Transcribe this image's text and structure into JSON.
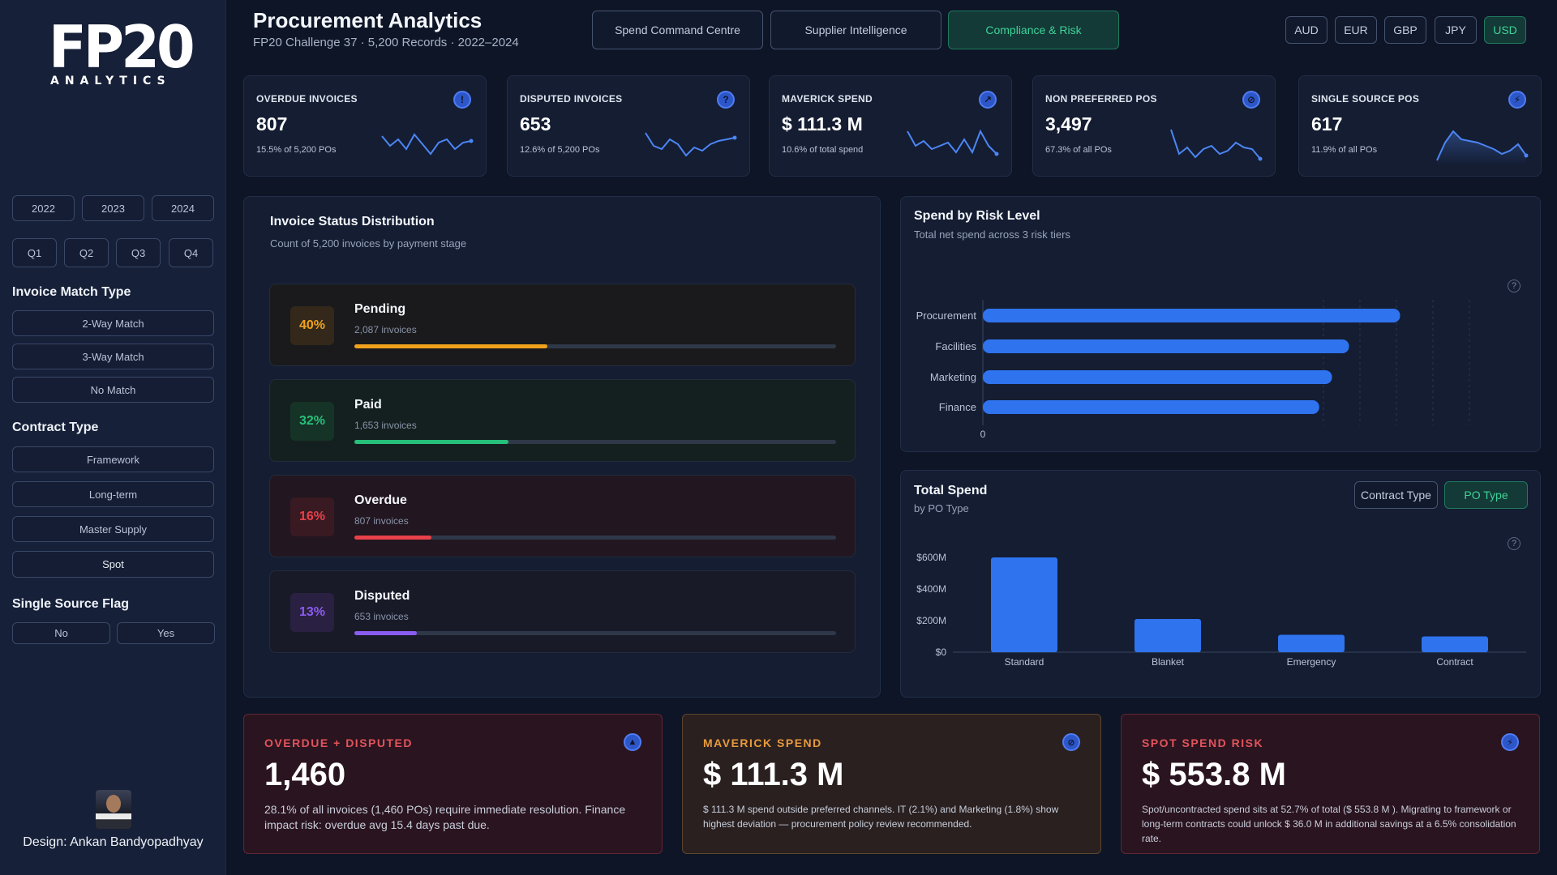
{
  "logo": {
    "main": "FP20",
    "sub": "ANALYTICS"
  },
  "header": {
    "title": "Procurement Analytics",
    "subtitle": "FP20 Challenge 37 · 5,200 Records · 2022–2024",
    "tabs": [
      "Spend Command Centre",
      "Supplier Intelligence",
      "Compliance & Risk"
    ],
    "active_tab": "Compliance & Risk",
    "currencies": [
      "AUD",
      "EUR",
      "GBP",
      "JPY",
      "USD"
    ],
    "active_currency": "USD"
  },
  "sidebar": {
    "years": [
      "2022",
      "2023",
      "2024"
    ],
    "quarters": [
      "Q1",
      "Q2",
      "Q3",
      "Q4"
    ],
    "match_label": "Invoice Match Type",
    "match_types": [
      "2-Way Match",
      "3-Way Match",
      "No Match"
    ],
    "contract_label": "Contract Type",
    "contract_types": [
      "Framework",
      "Long-term",
      "Master Supply",
      "Spot"
    ],
    "single_source_label": "Single Source Flag",
    "single_source": [
      "No",
      "Yes"
    ],
    "designer": "Design: Ankan Bandyopadhyay"
  },
  "kpis": [
    {
      "title": "OVERDUE INVOICES",
      "value": "807",
      "sub": "15.5% of 5,200 POs",
      "icon": "exclamation-icon",
      "glyph": "!"
    },
    {
      "title": "DISPUTED INVOICES",
      "value": "653",
      "sub": "12.6% of 5,200 POs",
      "icon": "question-icon",
      "glyph": "?"
    },
    {
      "title": "MAVERICK SPEND",
      "value": "$ 111.3 M",
      "sub": "10.6% of total spend",
      "icon": "arrow-up-right-icon",
      "glyph": "↗"
    },
    {
      "title": "NON PREFERRED POS",
      "value": "3,497",
      "sub": "67.3% of all POs",
      "icon": "prohibited-icon",
      "glyph": "⊘"
    },
    {
      "title": "SINGLE SOURCE POS",
      "value": "617",
      "sub": "11.9% of all POs",
      "icon": "lightning-icon",
      "glyph": "⚡"
    }
  ],
  "invoice_status": {
    "title": "Invoice Status Distribution",
    "subtitle": "Count of 5,200 invoices by payment stage",
    "items": [
      {
        "pct": "40%",
        "name": "Pending",
        "count": "2,087 invoices",
        "fraction": 0.4,
        "color": "#f0a21c",
        "bg": "#1a1a1c",
        "pct_bg": "#33281a"
      },
      {
        "pct": "32%",
        "name": "Paid",
        "count": "1,653 invoices",
        "fraction": 0.32,
        "color": "#27c07a",
        "bg": "#14201f",
        "pct_bg": "#163327"
      },
      {
        "pct": "16%",
        "name": "Overdue",
        "count": "807 invoices",
        "fraction": 0.16,
        "color": "#e8414a",
        "bg": "#221620",
        "pct_bg": "#3a1a22"
      },
      {
        "pct": "13%",
        "name": "Disputed",
        "count": "653 invoices",
        "fraction": 0.13,
        "color": "#8b5cf0",
        "bg": "#191a28",
        "pct_bg": "#2a2142"
      }
    ]
  },
  "risk_chart": {
    "title": "Spend by Risk Level",
    "subtitle": "Total net spend across 3 risk tiers"
  },
  "total_spend": {
    "title": "Total Spend",
    "subtitle": "by PO Type",
    "buttons": [
      "Contract Type",
      "PO Type"
    ],
    "active_button": "PO Type"
  },
  "chart_data": [
    {
      "type": "bar",
      "orientation": "horizontal",
      "categories": [
        "Procurement",
        "Facilities",
        "Marketing",
        "Finance"
      ],
      "values": [
        98,
        86,
        82,
        79
      ],
      "xtick_labels": [
        "0"
      ],
      "color": "#2f73ee"
    },
    {
      "type": "bar",
      "categories": [
        "Standard",
        "Blanket",
        "Emergency",
        "Contract"
      ],
      "values": [
        600,
        210,
        110,
        100
      ],
      "ytick_labels": [
        "$600M",
        "$400M",
        "$200M",
        "$0"
      ],
      "yticks": [
        600,
        400,
        200,
        0
      ],
      "ylim": [
        0,
        600
      ],
      "color": "#2f73ee"
    }
  ],
  "alerts": [
    {
      "title": "OVERDUE + DISPUTED",
      "value": "1,460",
      "text": "28.1% of all invoices (1,460 POs) require immediate resolution. Finance impact risk: overdue avg 15.4 days past due.",
      "icon": "warning-triangle-icon",
      "glyph": "▲",
      "accent": "#e2545b",
      "bg": "#2a1420",
      "border": "#5e2732"
    },
    {
      "title": "MAVERICK SPEND",
      "value": "$ 111.3 M",
      "text": "$ 111.3 M spend outside preferred channels. IT (2.1%) and Marketing (1.8%) show highest deviation — procurement policy review recommended.",
      "icon": "prohibited-icon",
      "glyph": "⊘",
      "accent": "#e89a3d",
      "bg": "#2a2020",
      "border": "#5e4530"
    },
    {
      "title": "SPOT SPEND RISK",
      "value": "$ 553.8 M",
      "text": "Spot/uncontracted spend sits at 52.7% of total ($ 553.8 M ). Migrating to framework or long-term contracts could unlock $ 36.0 M in additional savings at a 6.5% consolidation rate.",
      "icon": "lightning-icon",
      "glyph": "⚡",
      "accent": "#e2545b",
      "bg": "#2a1420",
      "border": "#5e2732"
    }
  ]
}
